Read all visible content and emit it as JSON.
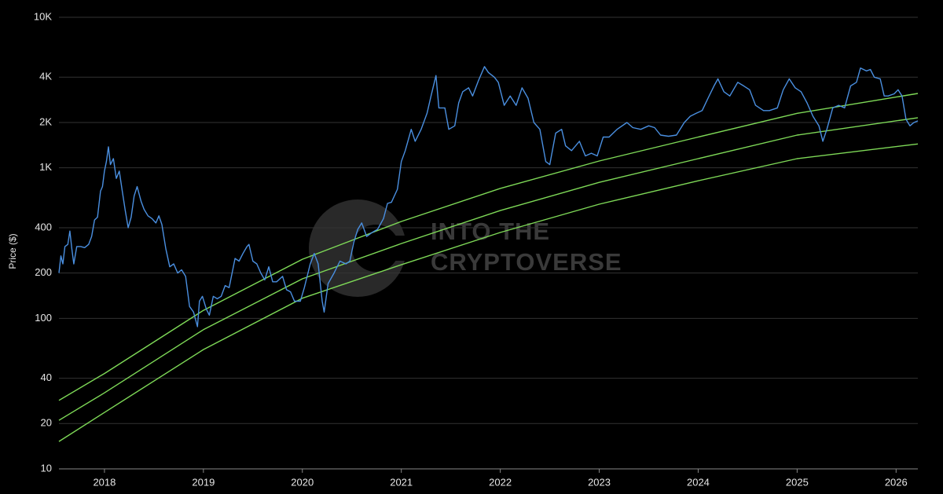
{
  "chart_data": {
    "type": "line",
    "y_label": "Price ($)",
    "watermark": [
      "INTO THE",
      "CRYPTOVERSE"
    ],
    "log_y": true,
    "grid": true,
    "xlim": [
      2017.54,
      2026.22
    ],
    "xticks": [
      2018,
      2019,
      2020,
      2021,
      2022,
      2023,
      2024,
      2025,
      2026
    ],
    "ylim": [
      10,
      10000
    ],
    "yticks": [
      10,
      20,
      40,
      100,
      200,
      400,
      {
        "value": 1000,
        "label": "1K"
      },
      {
        "value": 2000,
        "label": "2K"
      },
      {
        "value": 4000,
        "label": "4K"
      },
      {
        "value": 10000,
        "label": "10K"
      }
    ],
    "x": [
      2017.54,
      2017.56,
      2017.58,
      2017.6,
      2017.63,
      2017.65,
      2017.67,
      2017.69,
      2017.72,
      2017.76,
      2017.8,
      2017.84,
      2017.87,
      2017.9,
      2017.93,
      2017.96,
      2017.98,
      2018.0,
      2018.02,
      2018.04,
      2018.06,
      2018.09,
      2018.12,
      2018.15,
      2018.18,
      2018.21,
      2018.24,
      2018.27,
      2018.3,
      2018.33,
      2018.37,
      2018.4,
      2018.44,
      2018.48,
      2018.52,
      2018.55,
      2018.58,
      2018.62,
      2018.66,
      2018.7,
      2018.74,
      2018.78,
      2018.82,
      2018.86,
      2018.9,
      2018.94,
      2018.96,
      2018.99,
      2019.03,
      2019.06,
      2019.1,
      2019.14,
      2019.18,
      2019.22,
      2019.26,
      2019.32,
      2019.36,
      2019.4,
      2019.44,
      2019.46,
      2019.5,
      2019.54,
      2019.58,
      2019.62,
      2019.66,
      2019.7,
      2019.74,
      2019.8,
      2019.84,
      2019.88,
      2019.92,
      2019.98,
      2020.02,
      2020.08,
      2020.12,
      2020.16,
      2020.2,
      2020.22,
      2020.26,
      2020.32,
      2020.38,
      2020.44,
      2020.48,
      2020.52,
      2020.56,
      2020.6,
      2020.65,
      2020.7,
      2020.76,
      2020.82,
      2020.86,
      2020.9,
      2020.96,
      2021.0,
      2021.04,
      2021.1,
      2021.14,
      2021.2,
      2021.26,
      2021.3,
      2021.35,
      2021.38,
      2021.44,
      2021.48,
      2021.54,
      2021.58,
      2021.62,
      2021.68,
      2021.72,
      2021.78,
      2021.84,
      2021.88,
      2021.94,
      2021.98,
      2022.04,
      2022.1,
      2022.16,
      2022.22,
      2022.28,
      2022.34,
      2022.4,
      2022.46,
      2022.5,
      2022.56,
      2022.62,
      2022.66,
      2022.72,
      2022.8,
      2022.86,
      2022.92,
      2022.98,
      2023.04,
      2023.1,
      2023.18,
      2023.28,
      2023.34,
      2023.42,
      2023.5,
      2023.56,
      2023.62,
      2023.7,
      2023.78,
      2023.86,
      2023.92,
      2023.98,
      2024.04,
      2024.1,
      2024.16,
      2024.2,
      2024.26,
      2024.32,
      2024.4,
      2024.46,
      2024.52,
      2024.58,
      2024.66,
      2024.72,
      2024.8,
      2024.86,
      2024.92,
      2024.98,
      2025.04,
      2025.1,
      2025.16,
      2025.22,
      2025.26,
      2025.3,
      2025.36,
      2025.42,
      2025.48,
      2025.54,
      2025.6,
      2025.64,
      2025.7,
      2025.74,
      2025.78,
      2025.84,
      2025.88,
      2025.92,
      2025.98,
      2026.02,
      2026.06,
      2026.1,
      2026.14,
      2026.18,
      2026.22
    ],
    "series": [
      {
        "color": "#4a8fe0",
        "values": [
          200,
          260,
          230,
          300,
          310,
          380,
          290,
          230,
          300,
          300,
          295,
          310,
          350,
          450,
          470,
          700,
          750,
          950,
          1100,
          1380,
          1050,
          1150,
          850,
          950,
          700,
          520,
          400,
          470,
          650,
          750,
          600,
          530,
          480,
          460,
          430,
          480,
          420,
          290,
          220,
          230,
          200,
          210,
          190,
          120,
          110,
          88,
          130,
          140,
          115,
          105,
          140,
          135,
          140,
          165,
          160,
          250,
          240,
          270,
          300,
          310,
          240,
          230,
          200,
          180,
          220,
          175,
          175,
          190,
          155,
          150,
          130,
          130,
          160,
          230,
          270,
          230,
          130,
          110,
          170,
          200,
          240,
          230,
          240,
          320,
          390,
          430,
          350,
          370,
          390,
          460,
          580,
          590,
          720,
          1100,
          1300,
          1800,
          1500,
          1800,
          2300,
          3000,
          4100,
          2500,
          2500,
          1800,
          1900,
          2700,
          3200,
          3400,
          3000,
          3800,
          4700,
          4300,
          4000,
          3700,
          2600,
          3000,
          2600,
          3400,
          2900,
          2000,
          1800,
          1100,
          1050,
          1700,
          1800,
          1400,
          1300,
          1500,
          1200,
          1250,
          1200,
          1600,
          1600,
          1800,
          2000,
          1850,
          1800,
          1900,
          1850,
          1650,
          1620,
          1650,
          2000,
          2200,
          2300,
          2400,
          2900,
          3500,
          3900,
          3200,
          3000,
          3700,
          3500,
          3300,
          2600,
          2400,
          2400,
          2500,
          3300,
          3900,
          3400,
          3200,
          2700,
          2200,
          1900,
          1500,
          1800,
          2500,
          2600,
          2500,
          3500,
          3700,
          4600,
          4400,
          4500,
          4000,
          3900,
          3000,
          3000,
          3100,
          3300,
          3000,
          2100,
          1900,
          2000,
          2050
        ]
      },
      {
        "color": "#7ed957",
        "x": [
          2017.54,
          2018,
          2019,
          2020,
          2021,
          2022,
          2023,
          2024,
          2025,
          2026.22
        ],
        "values": [
          28.5,
          43,
          113,
          247,
          440,
          730,
          1110,
          1600,
          2300,
          3120
        ]
      },
      {
        "color": "#7ed957",
        "x": [
          2017.54,
          2018,
          2019,
          2020,
          2021,
          2022,
          2023,
          2024,
          2025,
          2026.22
        ],
        "values": [
          21,
          32,
          84,
          183,
          314,
          520,
          800,
          1150,
          1650,
          2150
        ]
      },
      {
        "color": "#7ed957",
        "x": [
          2017.54,
          2018,
          2019,
          2020,
          2021,
          2022,
          2023,
          2024,
          2025,
          2026.22
        ],
        "values": [
          15.2,
          23.7,
          62,
          136,
          227,
          372,
          573,
          820,
          1150,
          1440
        ]
      }
    ]
  }
}
